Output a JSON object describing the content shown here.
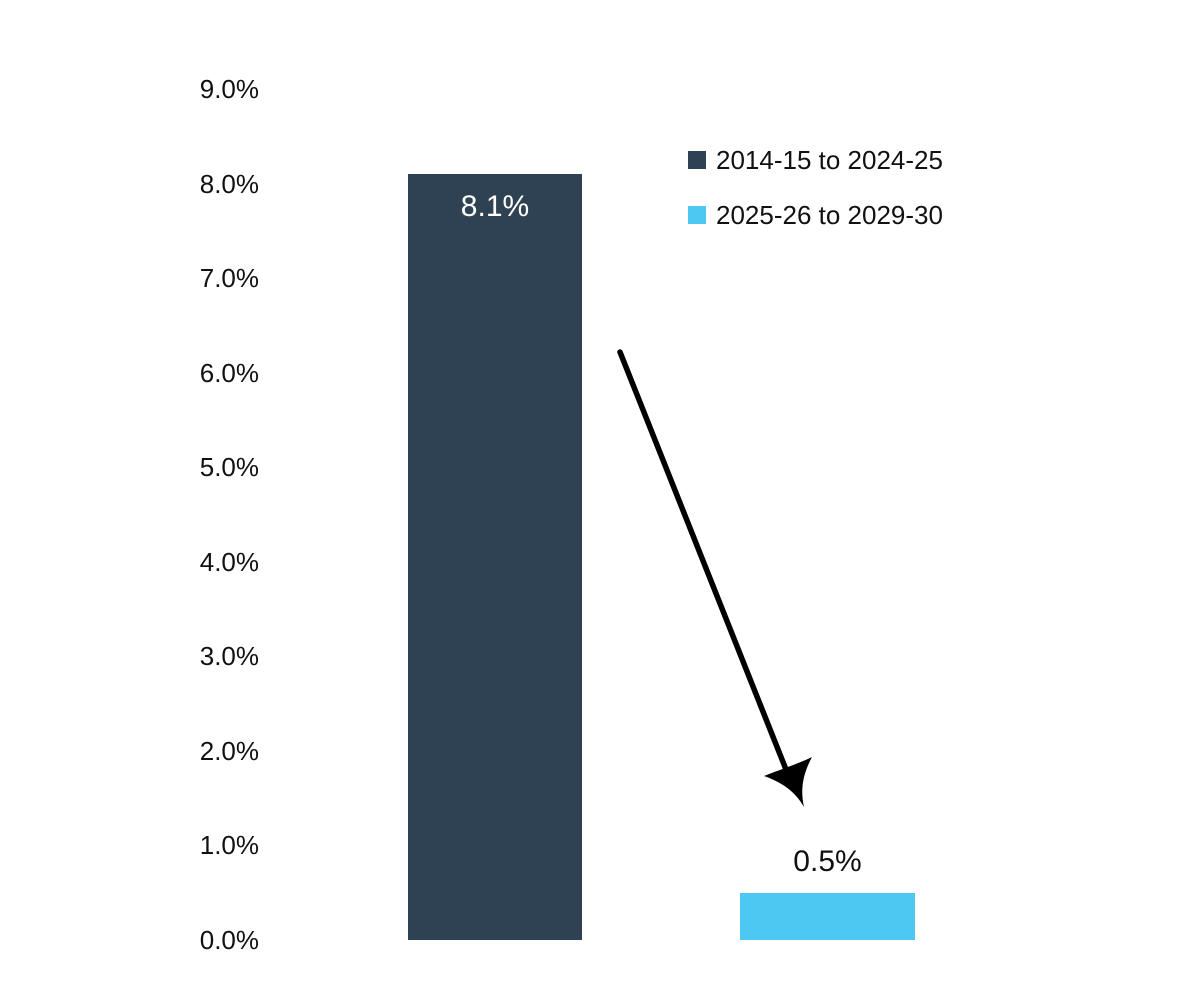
{
  "chart_data": {
    "type": "bar",
    "title": "",
    "xlabel": "",
    "ylabel": "",
    "categories": [
      "2014-15 to 2024-25",
      "2025-26 to 2029-30"
    ],
    "values": [
      8.1,
      0.5
    ],
    "data_labels": [
      "8.1%",
      "0.5%"
    ],
    "data_label_positions": [
      "inside-top",
      "above"
    ],
    "data_label_colors": [
      "#ffffff",
      "#111111"
    ],
    "bar_colors": [
      "#2f4254",
      "#4dc8f2"
    ],
    "ylim": [
      0,
      9
    ],
    "y_tick_step": 1,
    "y_tick_labels": [
      "0.0%",
      "1.0%",
      "2.0%",
      "3.0%",
      "4.0%",
      "5.0%",
      "6.0%",
      "7.0%",
      "8.0%",
      "9.0%"
    ],
    "grid": false,
    "axis_lines": false,
    "legend": {
      "position": "top-right",
      "entries": [
        {
          "label": "2014-15 to 2024-25",
          "color": "#2f4254"
        },
        {
          "label": "2025-26 to 2029-30",
          "color": "#4dc8f2"
        }
      ]
    },
    "annotations": [
      {
        "type": "arrow",
        "direction": "down-right",
        "from": "first bar",
        "to": "second bar",
        "color": "#000000"
      }
    ]
  }
}
